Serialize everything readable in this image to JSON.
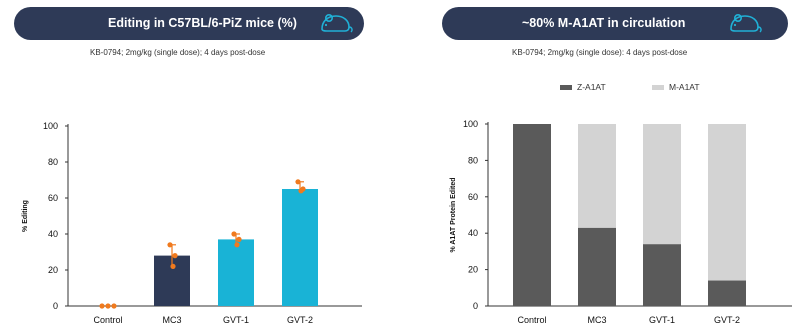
{
  "colors": {
    "banner_bg": "#2e3a57",
    "banner_text": "#ffffff",
    "icon_color": "#20b0d6",
    "bar_dark": "#2e3a57",
    "bar_teal": "#19b3d6",
    "error_marker": "#f07a1e",
    "z_a1at": "#5a5a5a",
    "m_a1at": "#d3d3d3"
  },
  "left_panel": {
    "title": "Editing in C57BL/6-PiZ mice (%)",
    "subtitle": "KB-0794; 2mg/kg (single dose); 4 days post-dose",
    "icon": "mouse-icon"
  },
  "right_panel": {
    "title": "~80% M-A1AT in circulation",
    "subtitle": "KB-0794; 2mg/kg (single dose): 4 days post-dose",
    "icon": "mouse-icon"
  },
  "chart_data": [
    {
      "type": "bar",
      "title": "Editing in C57BL/6-PiZ mice (%)",
      "categories": [
        "Control",
        "MC3",
        "GVT-1",
        "GVT-2"
      ],
      "values": [
        0,
        28,
        37,
        65
      ],
      "bar_colors": [
        "#2e3a57",
        "#2e3a57",
        "#19b3d6",
        "#19b3d6"
      ],
      "points": [
        [
          0,
          0,
          0
        ],
        [
          34,
          28,
          22
        ],
        [
          40,
          37,
          34
        ],
        [
          69,
          65,
          64
        ]
      ],
      "ylabel": "% Editing",
      "xlabel": "",
      "ylim": [
        0,
        100
      ],
      "yticks": [
        0,
        20,
        40,
        60,
        80,
        100
      ],
      "grid": false
    },
    {
      "type": "bar",
      "stacked": true,
      "title": "~80% M-A1AT in circulation",
      "categories": [
        "Control",
        "MC3",
        "GVT-1",
        "GVT-2"
      ],
      "series": [
        {
          "name": "Z-A1AT",
          "values": [
            100,
            43,
            34,
            14
          ]
        },
        {
          "name": "M-A1AT",
          "values": [
            0,
            57,
            66,
            86
          ]
        }
      ],
      "ylabel": "% A1AT Protein Edited",
      "xlabel": "",
      "ylim": [
        0,
        100
      ],
      "yticks": [
        0,
        20,
        40,
        60,
        80,
        100
      ],
      "legend": "top",
      "grid": false
    }
  ]
}
